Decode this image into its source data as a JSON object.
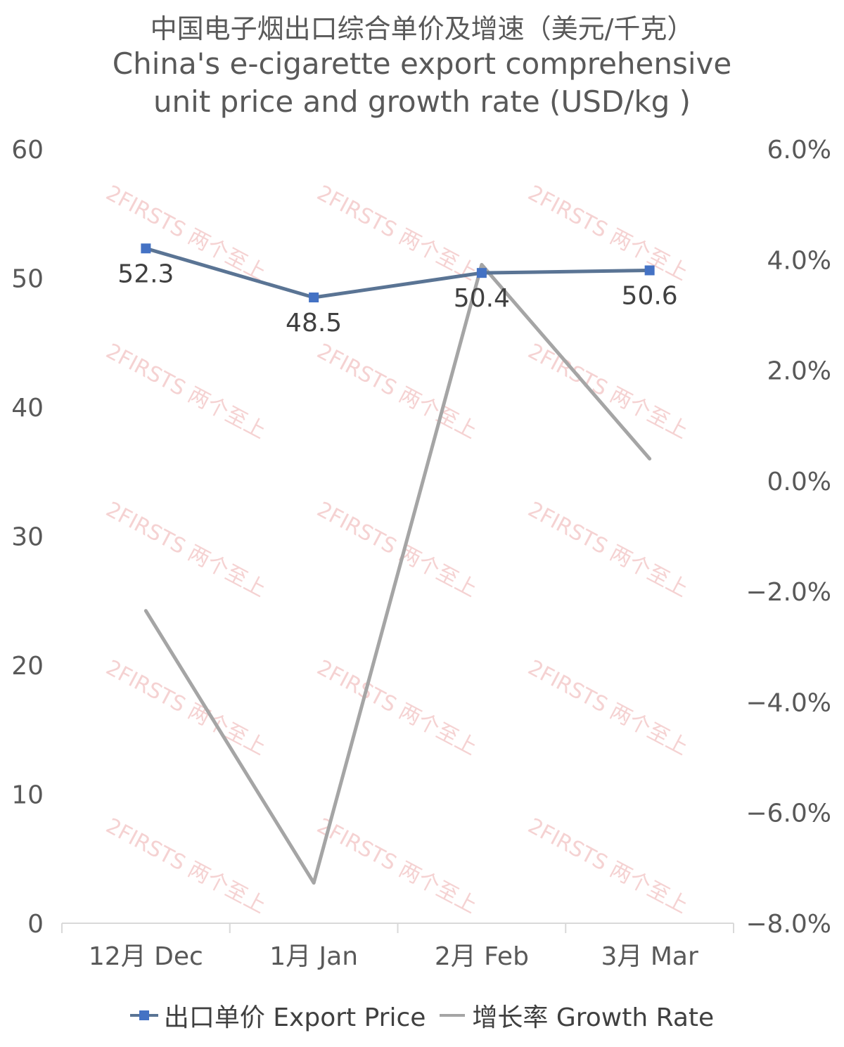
{
  "title_zh": "中国电子烟出口综合单价及增速（美元/千克）",
  "title_en_1": "China's e-cigarette export comprehensive",
  "title_en_2": "unit price and growth rate (USD/kg )",
  "watermark": "2FIRSTS 两个至上",
  "colors": {
    "price_line": "#5a7494",
    "price_marker": "#4472c4",
    "growth_line": "#a5a5a5",
    "axis": "#d9d9d9",
    "text": "#595959"
  },
  "chart_data": {
    "type": "line",
    "categories": [
      "12月 Dec",
      "1月 Jan",
      "2月 Feb",
      "3月 Mar"
    ],
    "y_left": {
      "min": 0,
      "max": 60,
      "ticks": [
        "0",
        "10",
        "20",
        "30",
        "40",
        "50",
        "60"
      ]
    },
    "y_right": {
      "min": -0.08,
      "max": 0.06,
      "ticks": [
        "−8.0%",
        "−6.0%",
        "−4.0%",
        "−2.0%",
        "0.0%",
        "2.0%",
        "4.0%",
        "6.0%"
      ]
    },
    "series": [
      {
        "name": "出口单价 Export Price",
        "axis": "left",
        "values": [
          52.3,
          48.5,
          50.4,
          50.6
        ],
        "labels": [
          "52.3",
          "48.5",
          "50.4",
          "50.6"
        ]
      },
      {
        "name": "增长率 Growth Rate",
        "axis": "right",
        "values": [
          -0.0235,
          -0.0727,
          0.0391,
          0.004
        ]
      }
    ],
    "legend_position": "bottom",
    "grid": false
  }
}
